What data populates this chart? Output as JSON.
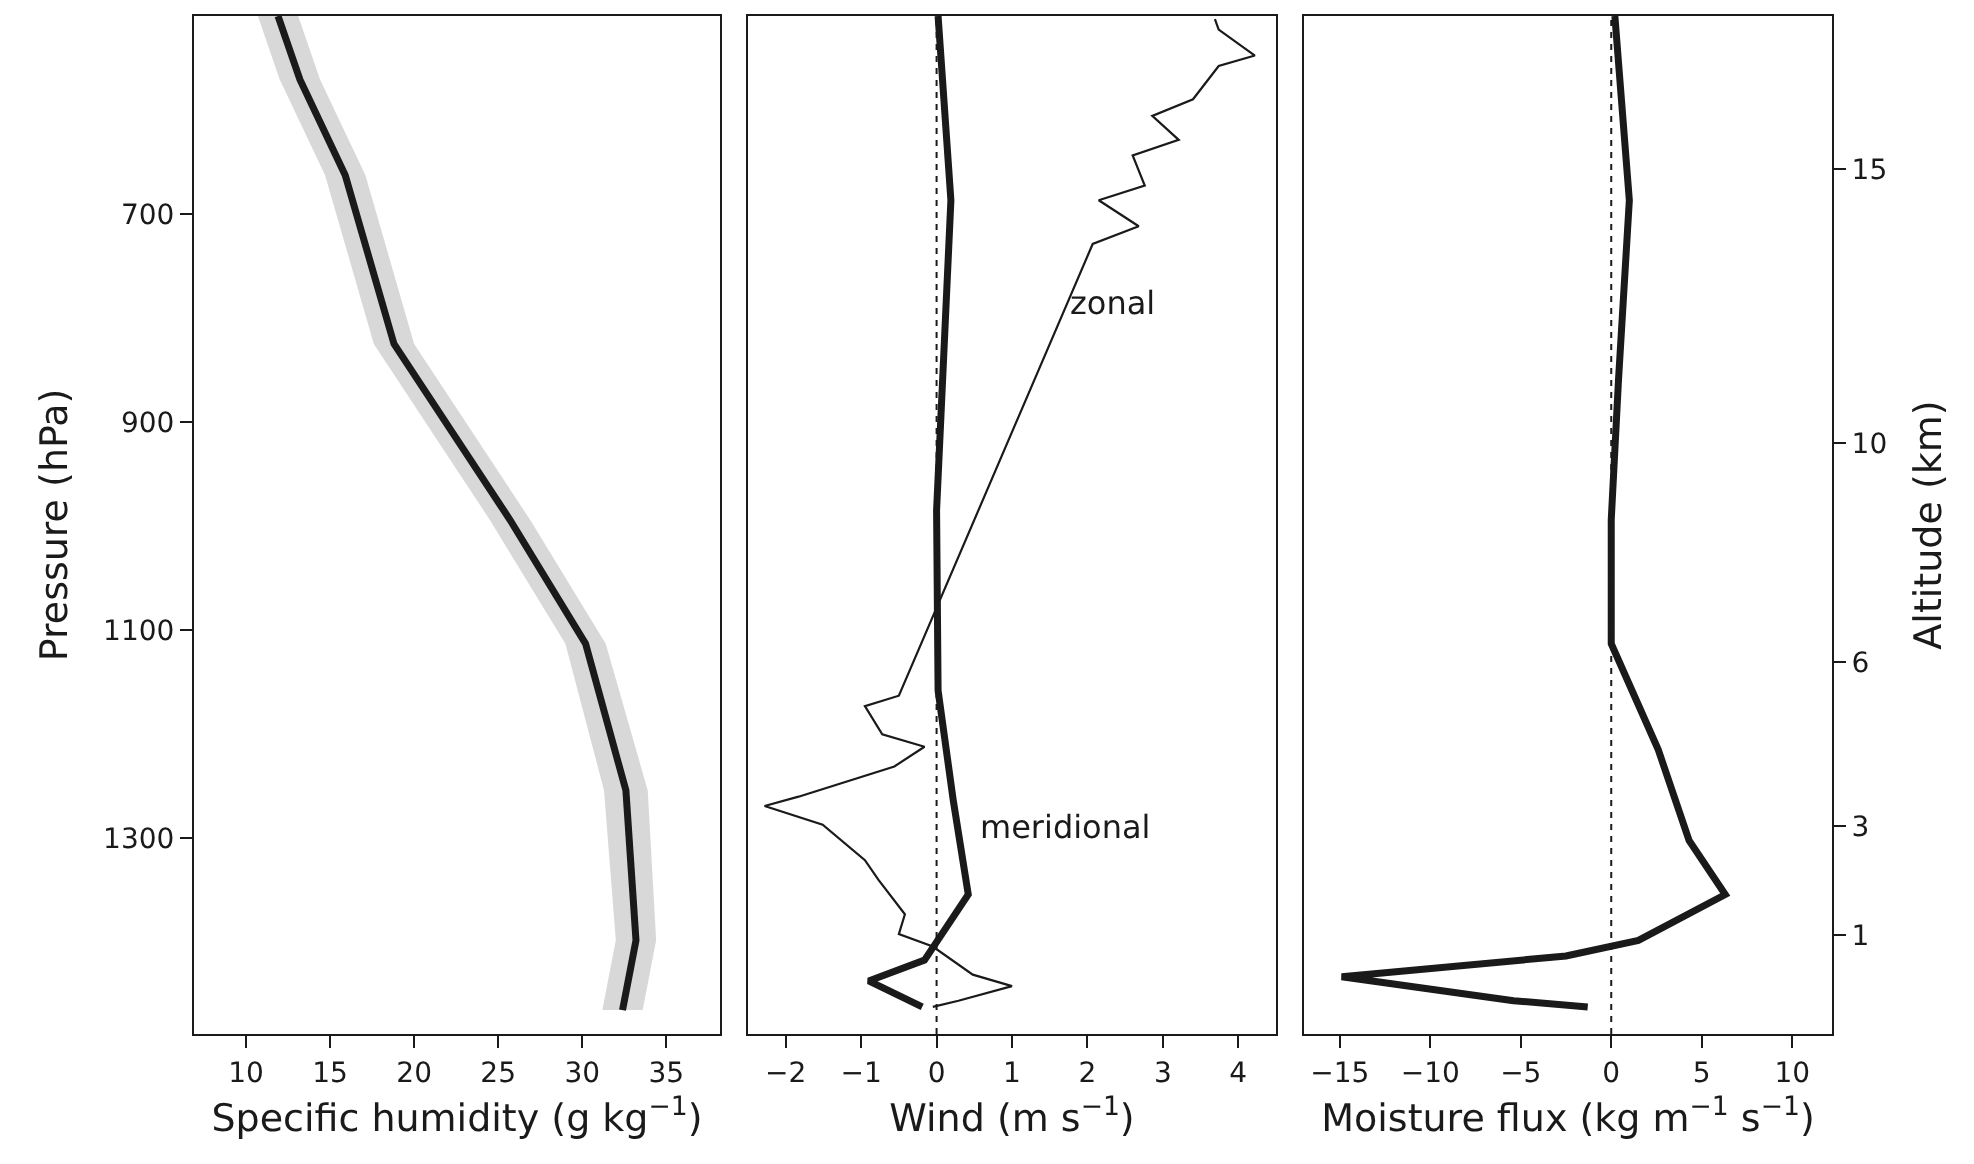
{
  "chart_data": [
    {
      "type": "line",
      "orientation": "horizontal",
      "xlabel": "Specific humidity (g kg$^{−1}$)",
      "ylabel": "Pressure (hPa)",
      "xlim": [
        6.9,
        38.2
      ],
      "xticks": [
        10,
        15,
        20,
        25,
        30,
        35
      ],
      "ylim": [
        1488,
        510
      ],
      "yticks": [
        700,
        900,
        1100,
        1300
      ],
      "series": [
        {
          "color": "#1a1a1a",
          "x": [
            510,
            571,
            663,
            825,
            994,
            1113,
            1254,
            1398,
            1465
          ],
          "values": [
            11.9,
            13.2,
            15.9,
            18.8,
            25.7,
            30.2,
            32.6,
            33.2,
            32.4
          ],
          "lower": [
            10.7,
            12.0,
            14.7,
            17.6,
            24.5,
            29.0,
            31.3,
            32.0,
            31.2
          ],
          "upper": [
            13.1,
            14.4,
            17.1,
            20.0,
            26.9,
            31.4,
            33.9,
            34.4,
            33.6
          ]
        }
      ]
    },
    {
      "type": "line",
      "orientation": "horizontal",
      "xlabel": "Wind (m s$^{−1}$)",
      "xlim": [
        -2.5,
        4.5
      ],
      "xticks": [
        {
          "value": -2,
          "label": "−2"
        },
        {
          "value": -1,
          "label": "−1"
        },
        0,
        1,
        2,
        3,
        4
      ],
      "ylim": [
        1488,
        510
      ],
      "tick_labels": "x",
      "ref_lines": [
        {
          "axis": "x",
          "value": 0,
          "color": "#1a1a1a",
          "line_style": "dotted"
        }
      ],
      "annotations": [
        "zonal",
        "meridional"
      ],
      "series": [
        {
          "color": "#1a1a1a",
          "x": [
            510,
            687,
            985,
            1158,
            1263,
            1354,
            1417,
            1437,
            1462
          ],
          "values": [
            0.02,
            0.19,
            0,
            0.02,
            0.22,
            0.42,
            -0.16,
            -0.9,
            -0.19
          ]
        },
        {
          "color": "#1a1a1a",
          "x": [
            513,
            523,
            548,
            558,
            590,
            606,
            629,
            644,
            673,
            687,
            712,
            729,
            1163,
            1173,
            1200,
            1212,
            1231,
            1260,
            1269,
            1287,
            1321,
            1340,
            1373,
            1392,
            1404,
            1431,
            1442,
            1456,
            1462
          ],
          "values": [
            3.69,
            3.74,
            4.22,
            3.74,
            3.4,
            2.86,
            3.21,
            2.6,
            2.76,
            2.15,
            2.68,
            2.07,
            -0.5,
            -0.95,
            -0.72,
            -0.16,
            -0.56,
            -1.83,
            -2.28,
            -1.51,
            -0.95,
            -0.77,
            -0.42,
            -0.5,
            -0.05,
            0.48,
            1.0,
            0.29,
            -0.05
          ]
        }
      ]
    },
    {
      "type": "line",
      "orientation": "horizontal",
      "xlabel": "Moisture flux (kg m$^{−1}$ s$^{−1}$)",
      "y2label": "Altitude (km)",
      "xlim": [
        -16.98,
        12.2
      ],
      "xticks": [
        {
          "value": -15,
          "label": "−15"
        },
        {
          "value": -10,
          "label": "−10"
        },
        {
          "value": -5,
          "label": "−5"
        },
        0,
        5,
        10
      ],
      "ylim": [
        1488,
        510
      ],
      "y2lim": [
        -0.8,
        17.8
      ],
      "y2ticks": [
        {
          "value": 1,
          "label": "1"
        },
        {
          "value": 3,
          "label": "3"
        },
        {
          "value": 6,
          "label": "6"
        },
        {
          "value": 10,
          "label": "10"
        },
        {
          "value": 15,
          "label": "15"
        }
      ],
      "tick_labels": "x",
      "ref_lines": [
        {
          "axis": "x",
          "value": 0,
          "color": "#1a1a1a",
          "line_style": "dotted"
        }
      ],
      "series": [
        {
          "color": "#1a1a1a",
          "x": [
            510,
            687,
            860,
            994,
            1113,
            1215,
            1302,
            1354,
            1398,
            1413,
            1433,
            1456,
            1462
          ],
          "values": [
            0.2,
            1.0,
            0.4,
            0,
            0,
            2.6,
            4.3,
            6.3,
            1.5,
            -2.5,
            -14.9,
            -5.4,
            -1.3
          ]
        }
      ]
    }
  ]
}
